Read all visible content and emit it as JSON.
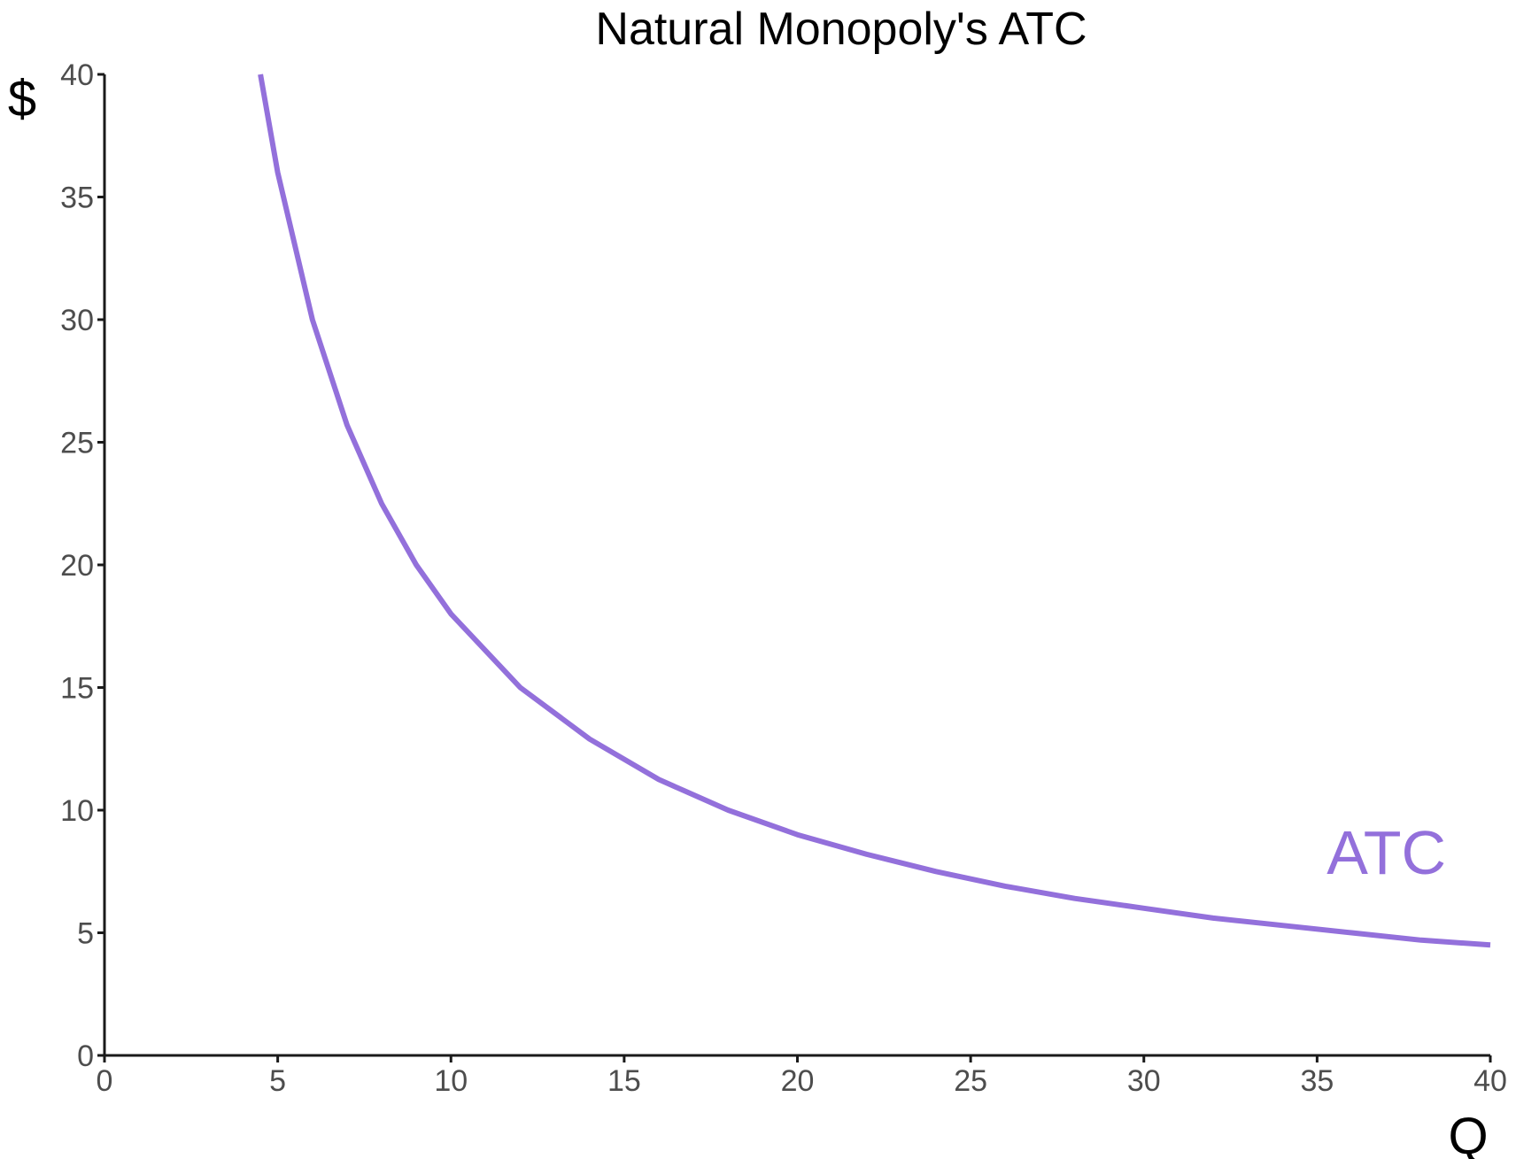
{
  "chart_data": {
    "type": "line",
    "title": "Natural Monopoly's ATC",
    "xlabel": "Q",
    "ylabel": "$",
    "xlim": [
      0,
      40
    ],
    "ylim": [
      0,
      40
    ],
    "x_ticks": [
      0,
      5,
      10,
      15,
      20,
      25,
      30,
      35,
      40
    ],
    "y_ticks": [
      0,
      5,
      10,
      15,
      20,
      25,
      30,
      35,
      40
    ],
    "grid": false,
    "legend": "none",
    "series": [
      {
        "name": "ATC",
        "color": "#9370DB",
        "x": [
          4.5,
          5,
          6,
          7,
          8,
          9,
          10,
          12,
          14,
          16,
          18,
          20,
          22,
          24,
          26,
          28,
          30,
          32,
          34,
          36,
          38,
          40
        ],
        "y": [
          40,
          36,
          30,
          25.7,
          22.5,
          20,
          18,
          15,
          12.9,
          11.25,
          10,
          9,
          8.2,
          7.5,
          6.9,
          6.4,
          6,
          5.6,
          5.3,
          5,
          4.7,
          4.5
        ]
      }
    ]
  }
}
